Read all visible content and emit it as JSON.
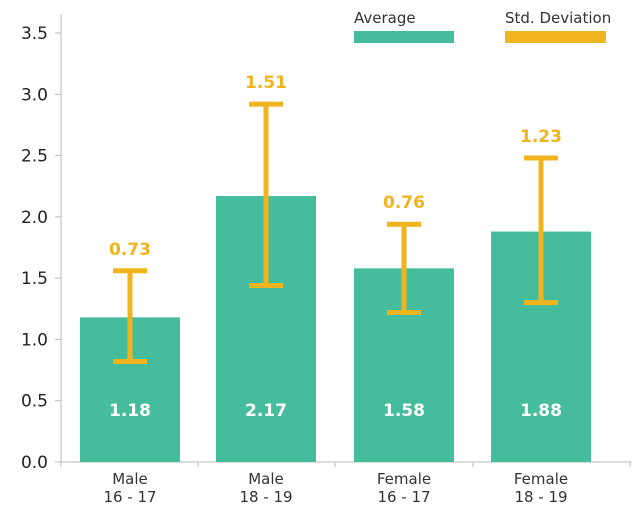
{
  "chart_data": {
    "type": "bar",
    "title": "",
    "xlabel": "",
    "ylabel": "",
    "ylim": [
      0,
      3.5
    ],
    "yticks": [
      "0.0",
      "0.5",
      "1.0",
      "1.5",
      "2.0",
      "2.5",
      "3.0",
      "3.5"
    ],
    "grid": false,
    "legend_position": "top-right",
    "categories": [
      {
        "line1": "Male",
        "line2": "16 - 17"
      },
      {
        "line1": "Male",
        "line2": "18 - 19"
      },
      {
        "line1": "Female",
        "line2": "16 - 17"
      },
      {
        "line1": "Female",
        "line2": "18 - 19"
      }
    ],
    "series": [
      {
        "name": "Average",
        "color": "#45bd9c",
        "values": [
          1.18,
          2.17,
          1.58,
          1.88
        ],
        "labels": [
          "1.18",
          "2.17",
          "1.58",
          "1.88"
        ]
      },
      {
        "name": "Std. Deviation",
        "color": "#f0b41e",
        "values": [
          0.73,
          1.51,
          0.76,
          1.23
        ],
        "labels": [
          "0.73",
          "1.51",
          "0.76",
          "1.23"
        ],
        "error_low": [
          0.82,
          1.44,
          1.22,
          1.3
        ],
        "error_high": [
          1.56,
          2.92,
          1.94,
          2.48
        ]
      }
    ]
  }
}
